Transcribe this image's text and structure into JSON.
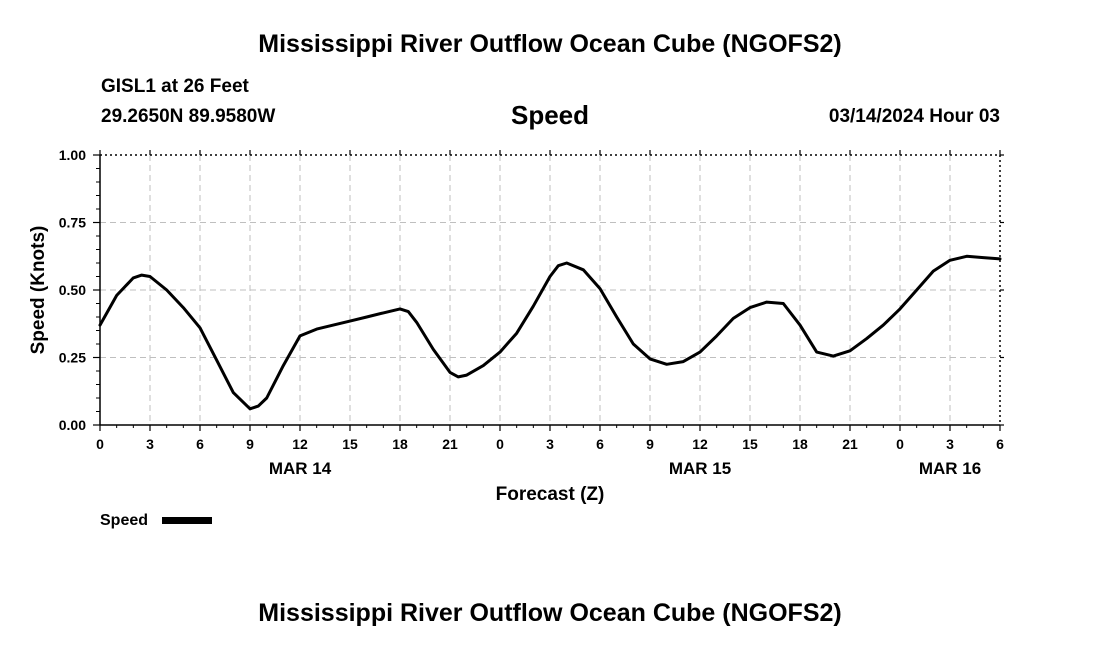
{
  "header": {
    "title": "Mississippi River Outflow Ocean Cube (NGOFS2)",
    "station": "GISL1 at 26 Feet",
    "coordinates": "29.2650N  89.9580W",
    "subtitle": "Speed",
    "datetime": "03/14/2024 Hour 03"
  },
  "footer": {
    "title": "Mississippi River Outflow Ocean Cube (NGOFS2)"
  },
  "chart_data": {
    "type": "line",
    "title": "Speed",
    "xlabel": "Forecast (Z)",
    "ylabel": "Speed (Knots)",
    "ylim": [
      0,
      1
    ],
    "xlim_hours": [
      0,
      54
    ],
    "x_ticks": [
      0,
      3,
      6,
      9,
      12,
      15,
      18,
      21,
      24,
      27,
      30,
      33,
      36,
      39,
      42,
      45,
      48,
      51,
      54
    ],
    "x_tick_labels": [
      "0",
      "3",
      "6",
      "9",
      "12",
      "15",
      "18",
      "21",
      "0",
      "3",
      "6",
      "9",
      "12",
      "15",
      "18",
      "21",
      "0",
      "3",
      "6"
    ],
    "y_ticks": [
      0,
      0.25,
      0.5,
      0.75,
      1.0
    ],
    "y_tick_labels": [
      "0.00",
      "0.25",
      "0.50",
      "0.75",
      "1.00"
    ],
    "date_labels": [
      {
        "hour": 12,
        "label": "MAR 14"
      },
      {
        "hour": 36,
        "label": "MAR 15"
      },
      {
        "hour": 51,
        "label": "MAR 16"
      }
    ],
    "grid": true,
    "legend_position": "bottom-left",
    "series": [
      {
        "name": "Speed",
        "color": "#000000",
        "x": [
          0,
          1,
          2,
          2.5,
          3,
          4,
          5,
          6,
          7,
          8,
          9,
          9.5,
          10,
          11,
          12,
          13,
          14,
          15,
          16,
          17,
          18,
          18.5,
          19,
          20,
          21,
          21.5,
          22,
          23,
          24,
          25,
          26,
          27,
          27.5,
          28,
          29,
          30,
          31,
          32,
          33,
          34,
          35,
          36,
          37,
          38,
          39,
          40,
          41,
          42,
          43,
          44,
          45,
          46,
          47,
          48,
          49,
          50,
          51,
          52,
          53,
          54
        ],
        "values": [
          0.37,
          0.48,
          0.545,
          0.555,
          0.55,
          0.5,
          0.435,
          0.36,
          0.24,
          0.12,
          0.06,
          0.07,
          0.1,
          0.22,
          0.33,
          0.355,
          0.37,
          0.385,
          0.4,
          0.415,
          0.43,
          0.42,
          0.38,
          0.28,
          0.195,
          0.178,
          0.185,
          0.22,
          0.27,
          0.34,
          0.44,
          0.55,
          0.59,
          0.6,
          0.575,
          0.505,
          0.4,
          0.3,
          0.245,
          0.225,
          0.235,
          0.27,
          0.33,
          0.395,
          0.435,
          0.455,
          0.45,
          0.37,
          0.27,
          0.255,
          0.275,
          0.32,
          0.37,
          0.43,
          0.5,
          0.57,
          0.61,
          0.625,
          0.62,
          0.615
        ]
      }
    ]
  }
}
